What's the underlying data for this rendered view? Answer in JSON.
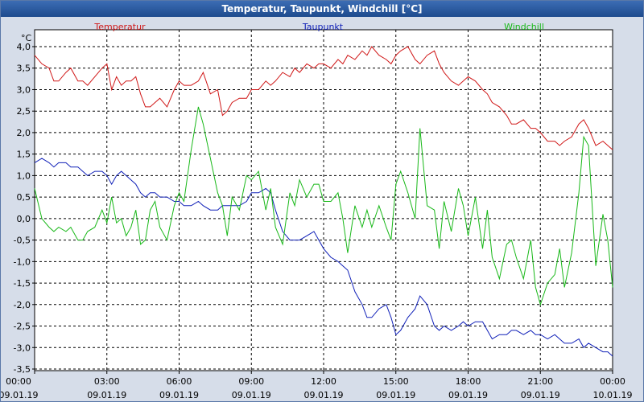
{
  "chart_data": {
    "type": "line",
    "title": "Temperatur, Taupunkt, Windchill [°C]",
    "ylabel": "°C",
    "ylim": [
      -3.5,
      4.0
    ],
    "yticks": [
      4.0,
      3.5,
      3.0,
      2.5,
      2.0,
      1.5,
      1.0,
      0.5,
      0.0,
      -0.5,
      -1.0,
      -1.5,
      -2.0,
      -2.5,
      -3.0,
      -3.5
    ],
    "ytick_labels": [
      "4,0",
      "3,5",
      "3,0",
      "2,5",
      "2,0",
      "1,5",
      "1,0",
      "0,5",
      "0,0",
      "-0,5",
      "-1,0",
      "-1,5",
      "-2,0",
      "-2,5",
      "-3,0",
      "-3,5"
    ],
    "xlim": [
      0,
      24
    ],
    "xticks": [
      0,
      3,
      6,
      9,
      12,
      15,
      18,
      21,
      24
    ],
    "xtick_time_labels": [
      "00:00",
      "03:00",
      "06:00",
      "09:00",
      "12:00",
      "15:00",
      "18:00",
      "21:00",
      "00:00"
    ],
    "xtick_date_labels": [
      "09.01.19",
      "09.01.19",
      "09.01.19",
      "09.01.19",
      "09.01.19",
      "09.01.19",
      "09.01.19",
      "09.01.19",
      "10.01.19"
    ],
    "grid": true,
    "series": [
      {
        "name": "Temperatur",
        "color": "#d01818",
        "x": [
          0,
          0.3,
          0.6,
          0.8,
          1,
          1.3,
          1.5,
          1.8,
          2,
          2.2,
          2.5,
          2.8,
          3,
          3.2,
          3.4,
          3.6,
          3.8,
          4,
          4.2,
          4.4,
          4.6,
          4.8,
          5,
          5.2,
          5.5,
          5.8,
          6,
          6.2,
          6.5,
          6.8,
          7,
          7.3,
          7.6,
          7.8,
          8,
          8.2,
          8.5,
          8.8,
          9,
          9.3,
          9.6,
          9.8,
          10,
          10.3,
          10.6,
          10.8,
          11,
          11.3,
          11.6,
          11.8,
          12,
          12.3,
          12.6,
          12.8,
          13,
          13.3,
          13.6,
          13.8,
          14,
          14.3,
          14.6,
          14.8,
          15,
          15.2,
          15.5,
          15.8,
          16,
          16.3,
          16.6,
          16.8,
          17,
          17.3,
          17.6,
          17.8,
          18,
          18.3,
          18.6,
          18.8,
          19,
          19.3,
          19.6,
          19.8,
          20,
          20.3,
          20.6,
          20.8,
          21,
          21.3,
          21.6,
          21.8,
          22,
          22.3,
          22.6,
          22.8,
          23,
          23.3,
          23.6,
          23.8,
          24
        ],
        "y": [
          3.8,
          3.6,
          3.5,
          3.2,
          3.2,
          3.4,
          3.5,
          3.2,
          3.2,
          3.1,
          3.3,
          3.5,
          3.6,
          3.0,
          3.3,
          3.1,
          3.2,
          3.2,
          3.3,
          2.9,
          2.6,
          2.6,
          2.7,
          2.8,
          2.6,
          3.0,
          3.2,
          3.1,
          3.1,
          3.2,
          3.4,
          2.9,
          3.0,
          2.4,
          2.5,
          2.7,
          2.8,
          2.8,
          3.0,
          3.0,
          3.2,
          3.1,
          3.2,
          3.4,
          3.3,
          3.5,
          3.4,
          3.6,
          3.5,
          3.6,
          3.6,
          3.5,
          3.7,
          3.6,
          3.8,
          3.7,
          3.9,
          3.8,
          4.0,
          3.8,
          3.7,
          3.6,
          3.8,
          3.9,
          4.0,
          3.7,
          3.6,
          3.8,
          3.9,
          3.6,
          3.4,
          3.2,
          3.1,
          3.2,
          3.3,
          3.2,
          3.0,
          2.9,
          2.7,
          2.6,
          2.4,
          2.2,
          2.2,
          2.3,
          2.1,
          2.1,
          2.0,
          1.8,
          1.8,
          1.7,
          1.8,
          1.9,
          2.2,
          2.3,
          2.1,
          1.7,
          1.8,
          1.7,
          1.6
        ]
      },
      {
        "name": "Taupunkt",
        "color": "#1020b8",
        "x": [
          0,
          0.3,
          0.6,
          0.8,
          1,
          1.3,
          1.5,
          1.8,
          2,
          2.2,
          2.5,
          2.8,
          3,
          3.2,
          3.4,
          3.6,
          3.8,
          4,
          4.2,
          4.4,
          4.6,
          4.8,
          5,
          5.2,
          5.5,
          5.8,
          6,
          6.2,
          6.5,
          6.8,
          7,
          7.3,
          7.6,
          7.8,
          8,
          8.2,
          8.5,
          8.8,
          9,
          9.3,
          9.6,
          9.8,
          10,
          10.3,
          10.6,
          10.8,
          11,
          11.3,
          11.6,
          11.8,
          12,
          12.3,
          12.6,
          12.8,
          13,
          13.3,
          13.6,
          13.8,
          14,
          14.3,
          14.6,
          14.8,
          15,
          15.2,
          15.5,
          15.8,
          16,
          16.3,
          16.6,
          16.8,
          17,
          17.3,
          17.6,
          17.8,
          18,
          18.3,
          18.6,
          18.8,
          19,
          19.3,
          19.6,
          19.8,
          20,
          20.3,
          20.6,
          20.8,
          21,
          21.3,
          21.6,
          21.8,
          22,
          22.3,
          22.6,
          22.8,
          23,
          23.3,
          23.6,
          23.8,
          24
        ],
        "y": [
          1.3,
          1.4,
          1.3,
          1.2,
          1.3,
          1.3,
          1.2,
          1.2,
          1.1,
          1.0,
          1.1,
          1.1,
          1.0,
          0.8,
          1.0,
          1.1,
          1.0,
          0.9,
          0.8,
          0.6,
          0.5,
          0.6,
          0.6,
          0.5,
          0.5,
          0.4,
          0.4,
          0.3,
          0.3,
          0.4,
          0.3,
          0.2,
          0.2,
          0.3,
          0.3,
          0.3,
          0.3,
          0.4,
          0.6,
          0.6,
          0.7,
          0.6,
          0.2,
          -0.3,
          -0.5,
          -0.5,
          -0.5,
          -0.4,
          -0.3,
          -0.5,
          -0.7,
          -0.9,
          -1.0,
          -1.1,
          -1.2,
          -1.7,
          -2.0,
          -2.3,
          -2.3,
          -2.1,
          -2.0,
          -2.3,
          -2.7,
          -2.6,
          -2.3,
          -2.1,
          -1.8,
          -2.0,
          -2.5,
          -2.6,
          -2.5,
          -2.6,
          -2.5,
          -2.4,
          -2.5,
          -2.4,
          -2.4,
          -2.6,
          -2.8,
          -2.7,
          -2.7,
          -2.6,
          -2.6,
          -2.7,
          -2.6,
          -2.7,
          -2.7,
          -2.8,
          -2.7,
          -2.8,
          -2.9,
          -2.9,
          -2.8,
          -3.0,
          -2.9,
          -3.0,
          -3.1,
          -3.1,
          -3.2
        ]
      },
      {
        "name": "Windchill",
        "color": "#18b818",
        "x": [
          0,
          0.3,
          0.6,
          0.8,
          1,
          1.3,
          1.5,
          1.8,
          2,
          2.2,
          2.5,
          2.8,
          3,
          3.2,
          3.4,
          3.6,
          3.8,
          4,
          4.2,
          4.4,
          4.6,
          4.8,
          5,
          5.2,
          5.5,
          5.8,
          6,
          6.2,
          6.5,
          6.8,
          7,
          7.3,
          7.6,
          7.8,
          8,
          8.2,
          8.5,
          8.8,
          9,
          9.3,
          9.6,
          9.8,
          10,
          10.3,
          10.6,
          10.8,
          11,
          11.3,
          11.6,
          11.8,
          12,
          12.3,
          12.6,
          12.8,
          13,
          13.3,
          13.6,
          13.8,
          14,
          14.3,
          14.6,
          14.8,
          15,
          15.2,
          15.5,
          15.8,
          16,
          16.3,
          16.6,
          16.8,
          17,
          17.3,
          17.6,
          17.8,
          18,
          18.3,
          18.6,
          18.8,
          19,
          19.3,
          19.6,
          19.8,
          20,
          20.3,
          20.6,
          20.8,
          21,
          21.3,
          21.6,
          21.8,
          22,
          22.3,
          22.6,
          22.8,
          23,
          23.3,
          23.6,
          23.8,
          24
        ],
        "y": [
          0.7,
          0.0,
          -0.2,
          -0.3,
          -0.2,
          -0.3,
          -0.2,
          -0.5,
          -0.5,
          -0.3,
          -0.2,
          0.2,
          -0.1,
          0.5,
          -0.1,
          0.0,
          -0.4,
          -0.2,
          0.2,
          -0.6,
          -0.5,
          0.2,
          0.4,
          -0.2,
          -0.5,
          0.3,
          0.6,
          0.4,
          1.6,
          2.6,
          2.2,
          1.4,
          0.6,
          0.3,
          -0.4,
          0.5,
          0.2,
          1.0,
          0.9,
          1.1,
          0.2,
          0.7,
          -0.2,
          -0.6,
          0.6,
          0.3,
          0.9,
          0.5,
          0.8,
          0.8,
          0.4,
          0.4,
          0.6,
          0.0,
          -0.8,
          0.3,
          -0.2,
          0.2,
          -0.2,
          0.3,
          -0.2,
          -0.5,
          0.8,
          1.1,
          0.6,
          0.0,
          2.1,
          0.3,
          0.2,
          -0.7,
          0.4,
          -0.3,
          0.7,
          0.3,
          -0.4,
          0.5,
          -0.7,
          0.2,
          -0.9,
          -1.4,
          -0.6,
          -0.5,
          -0.9,
          -1.4,
          -0.5,
          -1.6,
          -2.0,
          -1.5,
          -1.3,
          -0.7,
          -1.6,
          -0.8,
          0.6,
          1.9,
          1.7,
          -1.1,
          0.1,
          -0.5,
          -1.6
        ]
      }
    ]
  }
}
